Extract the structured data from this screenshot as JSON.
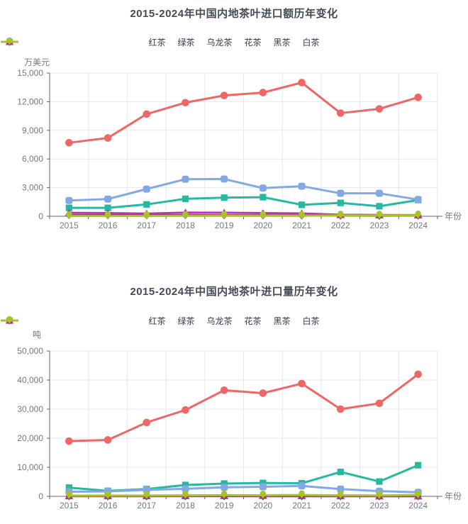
{
  "page": {
    "background": "#ffffff"
  },
  "chart_data": [
    {
      "type": "line",
      "title": "2015-2024年中国内地茶叶进口额历年变化",
      "ylabel": "万美元",
      "xlabel": "年份",
      "categories": [
        "2015",
        "2016",
        "2017",
        "2018",
        "2019",
        "2020",
        "2021",
        "2022",
        "2023",
        "2024"
      ],
      "y_ticks": [
        0,
        3000,
        6000,
        9000,
        12000,
        15000
      ],
      "ylim": [
        0,
        15000
      ],
      "grid": true,
      "legend_position": "top",
      "series": [
        {
          "name": "红茶",
          "key": "red-tea",
          "color": "#ee6666",
          "symbol": "circle",
          "values": [
            7700,
            8200,
            10700,
            11900,
            12650,
            12950,
            14000,
            10800,
            11250,
            12450
          ]
        },
        {
          "name": "绿茶",
          "key": "green-tea",
          "color": "#27b8a2",
          "symbol": "rect",
          "values": [
            880,
            880,
            1240,
            1830,
            1950,
            2000,
            1200,
            1400,
            1050,
            1700
          ]
        },
        {
          "name": "乌龙茶",
          "key": "oolong-tea",
          "color": "#83a9e4",
          "symbol": "roundRect",
          "values": [
            1650,
            1800,
            2850,
            3880,
            3900,
            2950,
            3150,
            2400,
            2400,
            1750
          ]
        },
        {
          "name": "花茶",
          "key": "flower-tea",
          "color": "#c32dc3",
          "symbol": "triangle",
          "values": [
            360,
            330,
            280,
            380,
            370,
            330,
            300,
            160,
            130,
            120
          ]
        },
        {
          "name": "黑茶",
          "key": "dark-tea",
          "color": "#8a4752",
          "symbol": "diamond",
          "values": [
            120,
            110,
            100,
            120,
            110,
            100,
            90,
            70,
            60,
            80
          ]
        },
        {
          "name": "白茶",
          "key": "white-tea",
          "color": "#a9c327",
          "symbol": "pin",
          "values": [
            30,
            30,
            40,
            50,
            60,
            50,
            60,
            90,
            80,
            100
          ]
        }
      ]
    },
    {
      "type": "line",
      "title": "2015-2024年中国内地茶叶进口量历年变化",
      "ylabel": "吨",
      "xlabel": "年份",
      "categories": [
        "2015",
        "2016",
        "2017",
        "2018",
        "2019",
        "2020",
        "2021",
        "2022",
        "2023",
        "2024"
      ],
      "y_ticks": [
        0,
        10000,
        20000,
        30000,
        40000,
        50000
      ],
      "ylim": [
        0,
        50000
      ],
      "grid": true,
      "legend_position": "top",
      "series": [
        {
          "name": "红茶",
          "key": "red-tea",
          "color": "#ee6666",
          "symbol": "circle",
          "values": [
            19000,
            19400,
            25400,
            29700,
            36500,
            35500,
            38800,
            30000,
            32000,
            42000
          ]
        },
        {
          "name": "绿茶",
          "key": "green-tea",
          "color": "#27b8a2",
          "symbol": "rect",
          "values": [
            3000,
            1900,
            2500,
            3900,
            4400,
            4600,
            4500,
            8400,
            5100,
            10700
          ]
        },
        {
          "name": "乌龙茶",
          "key": "oolong-tea",
          "color": "#83a9e4",
          "symbol": "roundRect",
          "values": [
            1600,
            1700,
            2200,
            2600,
            3100,
            3300,
            3600,
            2500,
            1800,
            1400
          ]
        },
        {
          "name": "花茶",
          "key": "flower-tea",
          "color": "#c32dc3",
          "symbol": "triangle",
          "values": [
            150,
            150,
            150,
            200,
            200,
            250,
            200,
            150,
            100,
            100
          ]
        },
        {
          "name": "黑茶",
          "key": "dark-tea",
          "color": "#8a4752",
          "symbol": "diamond",
          "values": [
            60,
            60,
            60,
            80,
            80,
            70,
            70,
            50,
            50,
            50
          ]
        },
        {
          "name": "白茶",
          "key": "white-tea",
          "color": "#a9c327",
          "symbol": "pin",
          "values": [
            250,
            260,
            280,
            350,
            400,
            380,
            450,
            350,
            300,
            450
          ]
        }
      ]
    }
  ],
  "style": {
    "title_color": "#454b55",
    "tick_label_color": "#74787f",
    "axis_line_color": "#61656c",
    "grid_line_color": "#e4e7ee",
    "legend_text_color": "#333a45"
  }
}
